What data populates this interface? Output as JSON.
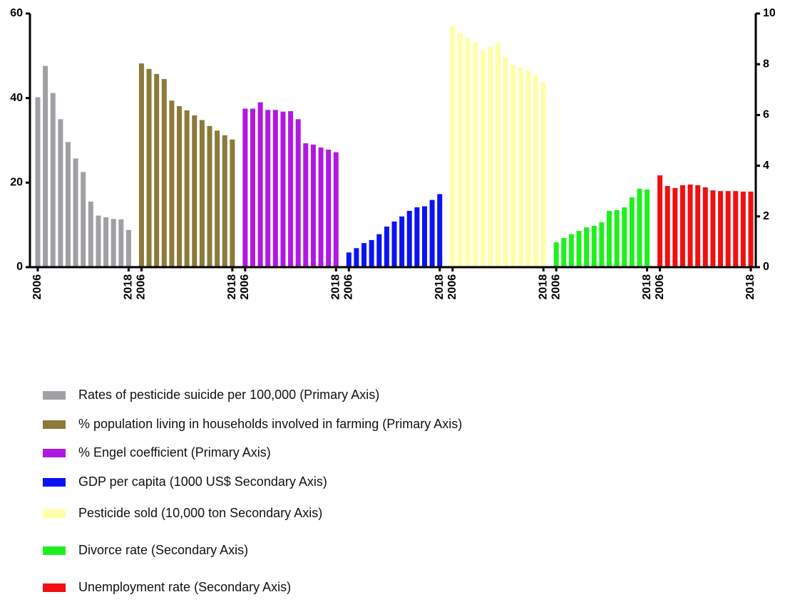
{
  "chart_data": {
    "type": "bar",
    "categories": [
      "2006",
      null,
      null,
      null,
      null,
      null,
      null,
      null,
      null,
      null,
      null,
      null,
      "2018"
    ],
    "ylim": [
      0,
      60
    ],
    "yticks": [
      0,
      20,
      40,
      60
    ],
    "y2lim": [
      0,
      10
    ],
    "y2ticks": [
      0,
      2,
      4,
      6,
      8,
      10
    ],
    "series": [
      {
        "name": "Rates of pesticide suicide per 100,000 (Primary Axis)",
        "color": "#a0a0a4",
        "axis": "y",
        "values": [
          40.2,
          47.6,
          41.2,
          35,
          29.6,
          25.7,
          22.5,
          15.5,
          12.2,
          11.8,
          11.4,
          11.3,
          8.8
        ]
      },
      {
        "name": "% population living in households involved in farming (Primary Axis)",
        "color": "#8b7a3a",
        "axis": "y",
        "values": [
          48.2,
          46.9,
          45.7,
          44.5,
          39.4,
          38.1,
          37.1,
          35.9,
          34.8,
          33.4,
          32.3,
          31.2,
          30.2
        ]
      },
      {
        "name": "% Engel coefficient (Primary Axis)",
        "color": "#b019e0",
        "axis": "y",
        "values": [
          37.5,
          37.5,
          39,
          37.2,
          37.2,
          36.8,
          36.9,
          35,
          29.3,
          29,
          28.3,
          27.8,
          27.2
        ]
      },
      {
        "name": "GDP per capita (1000 US$ Secondary Axis)",
        "color": "#0a14f0",
        "axis": "y2",
        "values": [
          0.58,
          0.75,
          0.95,
          1.07,
          1.3,
          1.6,
          1.8,
          2.0,
          2.22,
          2.36,
          2.4,
          2.65,
          2.88
        ]
      },
      {
        "name": "Pesticide sold (10,000 ton Secondary Axis)",
        "color": "#ffffa8",
        "axis": "y2",
        "values": [
          9.52,
          9.24,
          9.05,
          8.88,
          8.54,
          8.68,
          8.85,
          8.29,
          7.98,
          7.87,
          7.73,
          7.56,
          7.3
        ]
      },
      {
        "name": "Divorce rate (Secondary Axis)",
        "color": "#1ef01e",
        "axis": "y2",
        "values": [
          0.98,
          1.15,
          1.3,
          1.43,
          1.57,
          1.63,
          1.77,
          2.22,
          2.25,
          2.36,
          2.75,
          3.09,
          3.06
        ]
      },
      {
        "name": "Unemployment rate (Secondary Axis)",
        "color": "#f01010",
        "axis": "y2",
        "values": [
          3.62,
          3.2,
          3.12,
          3.23,
          3.26,
          3.23,
          3.15,
          3.03,
          3.0,
          3.0,
          3.0,
          2.98,
          2.98
        ]
      }
    ]
  }
}
